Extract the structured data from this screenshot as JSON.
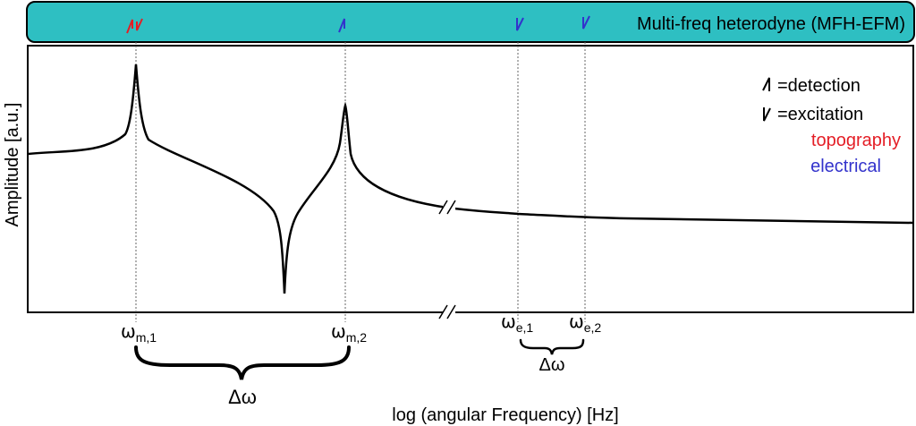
{
  "banner": {
    "title": "Multi-freq heterodyne (MFH-EFM)",
    "fill_color": "#2ebfc2",
    "markers": [
      {
        "channel": "topography",
        "type": "detection+excitation",
        "color": "#e41e26",
        "frequency": "m1"
      },
      {
        "channel": "electrical",
        "type": "detection",
        "color": "#3333cc",
        "frequency": "m2"
      },
      {
        "channel": "electrical",
        "type": "excitation",
        "color": "#3333cc",
        "frequency": "e1"
      },
      {
        "channel": "electrical",
        "type": "excitation",
        "color": "#3333cc",
        "frequency": "e2"
      }
    ]
  },
  "legend": {
    "detection_label": "=detection",
    "excitation_label": "=excitation",
    "topography_label": "topography",
    "topography_color": "#e41e26",
    "electrical_label": "electrical",
    "electrical_color": "#3333cc"
  },
  "axes": {
    "ylabel": "Amplitude [a.u.]",
    "xlabel": "log (angular Frequency) [Hz]",
    "axis_break": true
  },
  "frequency_labels": {
    "m1": {
      "base": "ω",
      "sub": "m,1"
    },
    "m2": {
      "base": "ω",
      "sub": "m,2"
    },
    "e1": {
      "base": "ω",
      "sub": "e,1"
    },
    "e2": {
      "base": "ω",
      "sub": "e,2"
    }
  },
  "braces": {
    "mechanical_label": "Δω",
    "electrical_label": "Δω"
  },
  "curve": {
    "description_features": [
      "resonance peak at m1",
      "anti-resonance dip",
      "resonance peak at m2",
      "slowly decaying tail"
    ]
  }
}
